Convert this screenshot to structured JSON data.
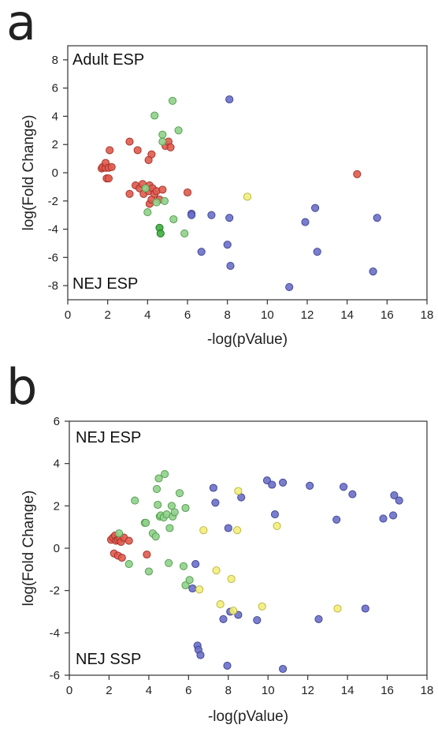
{
  "chart_data": [
    {
      "type": "scatter",
      "panel_label": "a",
      "xlabel": "-log(pValue)",
      "ylabel": "log(Fold Change)",
      "xlim": [
        0,
        18
      ],
      "ylim": [
        -9,
        9
      ],
      "xticks": [
        0,
        2,
        4,
        6,
        8,
        10,
        12,
        14,
        16,
        18
      ],
      "yticks": [
        -8,
        -6,
        -4,
        -2,
        0,
        2,
        4,
        6,
        8
      ],
      "annotations": {
        "top_left": "Adult ESP",
        "bottom_left": "NEJ ESP"
      },
      "colors": {
        "red": "#e05a4e",
        "green": "#8fd08a",
        "dark_green": "#3fae3f",
        "blue": "#6a6fc9",
        "yellow": "#f2ee7a"
      },
      "series": [
        {
          "color": "red",
          "points": [
            [
              1.7,
              0.3
            ],
            [
              1.75,
              0.4
            ],
            [
              1.9,
              0.35
            ],
            [
              1.9,
              0.7
            ],
            [
              2.05,
              0.35
            ],
            [
              2.2,
              0.4
            ],
            [
              1.95,
              -0.4
            ],
            [
              2.05,
              -0.4
            ],
            [
              2.1,
              1.6
            ],
            [
              3.1,
              2.2
            ],
            [
              3.5,
              1.6
            ],
            [
              4.2,
              1.3
            ],
            [
              4.05,
              0.9
            ],
            [
              3.1,
              -1.5
            ],
            [
              3.4,
              -0.9
            ],
            [
              3.6,
              -1.1
            ],
            [
              3.75,
              -0.8
            ],
            [
              3.8,
              -1.5
            ],
            [
              4.05,
              -1.3
            ],
            [
              4.1,
              -2.2
            ],
            [
              4.2,
              -1.9
            ],
            [
              4.1,
              -0.9
            ],
            [
              4.25,
              -1.1
            ],
            [
              4.35,
              -1.5
            ],
            [
              4.45,
              -1.3
            ],
            [
              4.6,
              -1.9
            ],
            [
              4.75,
              -1.2
            ],
            [
              4.9,
              1.9
            ],
            [
              5.05,
              2.2
            ],
            [
              5.15,
              1.8
            ],
            [
              6.0,
              -1.4
            ],
            [
              14.5,
              -0.1
            ]
          ]
        },
        {
          "color": "green",
          "points": [
            [
              4.35,
              4.05
            ],
            [
              4.75,
              2.7
            ],
            [
              4.75,
              2.2
            ],
            [
              5.25,
              5.1
            ],
            [
              5.55,
              3.0
            ],
            [
              3.9,
              -1.1
            ],
            [
              4.0,
              -2.8
            ],
            [
              4.45,
              -2.1
            ],
            [
              4.85,
              -2.0
            ],
            [
              5.3,
              -3.3
            ],
            [
              5.85,
              -4.3
            ]
          ]
        },
        {
          "color": "dark_green",
          "points": [
            [
              4.6,
              -3.9
            ],
            [
              4.65,
              -4.3
            ]
          ]
        },
        {
          "color": "blue",
          "points": [
            [
              8.1,
              5.2
            ],
            [
              6.2,
              -2.9
            ],
            [
              6.2,
              -3.0
            ],
            [
              7.2,
              -3.0
            ],
            [
              8.1,
              -3.2
            ],
            [
              6.7,
              -5.6
            ],
            [
              8.0,
              -5.1
            ],
            [
              8.15,
              -6.6
            ],
            [
              11.9,
              -3.5
            ],
            [
              12.4,
              -2.5
            ],
            [
              12.5,
              -5.6
            ],
            [
              11.1,
              -8.1
            ],
            [
              15.5,
              -3.2
            ],
            [
              15.3,
              -7.0
            ]
          ]
        },
        {
          "color": "yellow",
          "points": [
            [
              9.0,
              -1.7
            ]
          ]
        }
      ]
    },
    {
      "type": "scatter",
      "panel_label": "b",
      "xlabel": "-log(pValue)",
      "ylabel": "log(Fold Change)",
      "xlim": [
        0,
        18
      ],
      "ylim": [
        -6,
        6
      ],
      "xticks": [
        0,
        2,
        4,
        6,
        8,
        10,
        12,
        14,
        16,
        18
      ],
      "yticks": [
        -6,
        -4,
        -2,
        0,
        2,
        4,
        6
      ],
      "annotations": {
        "top_left": "NEJ ESP",
        "bottom_left": "NEJ SSP"
      },
      "colors": {
        "red": "#e05a4e",
        "green": "#8fd08a",
        "blue": "#6a6fc9",
        "yellow": "#f2ee7a"
      },
      "series": [
        {
          "color": "red",
          "points": [
            [
              2.1,
              0.4
            ],
            [
              2.2,
              0.5
            ],
            [
              2.3,
              0.6
            ],
            [
              2.35,
              0.35
            ],
            [
              2.45,
              0.4
            ],
            [
              2.55,
              0.45
            ],
            [
              2.6,
              0.3
            ],
            [
              2.75,
              0.5
            ],
            [
              3.0,
              0.35
            ],
            [
              2.25,
              -0.25
            ],
            [
              2.45,
              -0.35
            ],
            [
              2.65,
              -0.45
            ],
            [
              3.9,
              -0.3
            ]
          ]
        },
        {
          "color": "green",
          "points": [
            [
              2.5,
              0.7
            ],
            [
              3.0,
              -0.75
            ],
            [
              3.3,
              2.25
            ],
            [
              3.8,
              1.2
            ],
            [
              3.85,
              1.2
            ],
            [
              4.0,
              -1.1
            ],
            [
              4.2,
              0.7
            ],
            [
              4.35,
              0.55
            ],
            [
              4.4,
              2.8
            ],
            [
              4.45,
              2.05
            ],
            [
              4.5,
              3.3
            ],
            [
              4.55,
              1.5
            ],
            [
              4.6,
              1.55
            ],
            [
              4.75,
              1.45
            ],
            [
              4.8,
              3.5
            ],
            [
              4.9,
              1.6
            ],
            [
              5.0,
              -0.7
            ],
            [
              5.05,
              0.95
            ],
            [
              5.15,
              2.0
            ],
            [
              5.2,
              1.5
            ],
            [
              5.3,
              1.7
            ],
            [
              5.55,
              2.6
            ],
            [
              5.75,
              -0.85
            ],
            [
              5.85,
              -1.75
            ],
            [
              5.85,
              1.9
            ],
            [
              6.05,
              -1.5
            ]
          ]
        },
        {
          "color": "blue",
          "points": [
            [
              6.2,
              -1.9
            ],
            [
              6.35,
              -0.75
            ],
            [
              6.45,
              -4.6
            ],
            [
              6.5,
              -4.8
            ],
            [
              6.6,
              -5.05
            ],
            [
              7.25,
              2.85
            ],
            [
              7.35,
              2.15
            ],
            [
              7.75,
              -3.35
            ],
            [
              7.95,
              -5.55
            ],
            [
              8.0,
              0.95
            ],
            [
              8.1,
              -3.0
            ],
            [
              8.5,
              -3.15
            ],
            [
              8.65,
              2.4
            ],
            [
              9.45,
              -3.4
            ],
            [
              9.95,
              3.2
            ],
            [
              10.2,
              3.0
            ],
            [
              10.35,
              1.6
            ],
            [
              10.75,
              3.1
            ],
            [
              10.75,
              -5.7
            ],
            [
              12.1,
              2.95
            ],
            [
              12.55,
              -3.35
            ],
            [
              13.45,
              1.35
            ],
            [
              13.8,
              2.9
            ],
            [
              14.25,
              2.55
            ],
            [
              14.9,
              -2.85
            ],
            [
              15.8,
              1.4
            ],
            [
              16.3,
              1.55
            ],
            [
              16.35,
              2.5
            ],
            [
              16.6,
              2.25
            ]
          ]
        },
        {
          "color": "yellow",
          "points": [
            [
              6.55,
              -1.95
            ],
            [
              6.75,
              0.85
            ],
            [
              7.4,
              -1.05
            ],
            [
              7.6,
              -2.65
            ],
            [
              8.15,
              -1.45
            ],
            [
              8.25,
              -2.95
            ],
            [
              8.45,
              0.85
            ],
            [
              8.5,
              2.7
            ],
            [
              9.7,
              -2.75
            ],
            [
              10.45,
              1.05
            ],
            [
              13.5,
              -2.85
            ]
          ]
        }
      ]
    }
  ]
}
